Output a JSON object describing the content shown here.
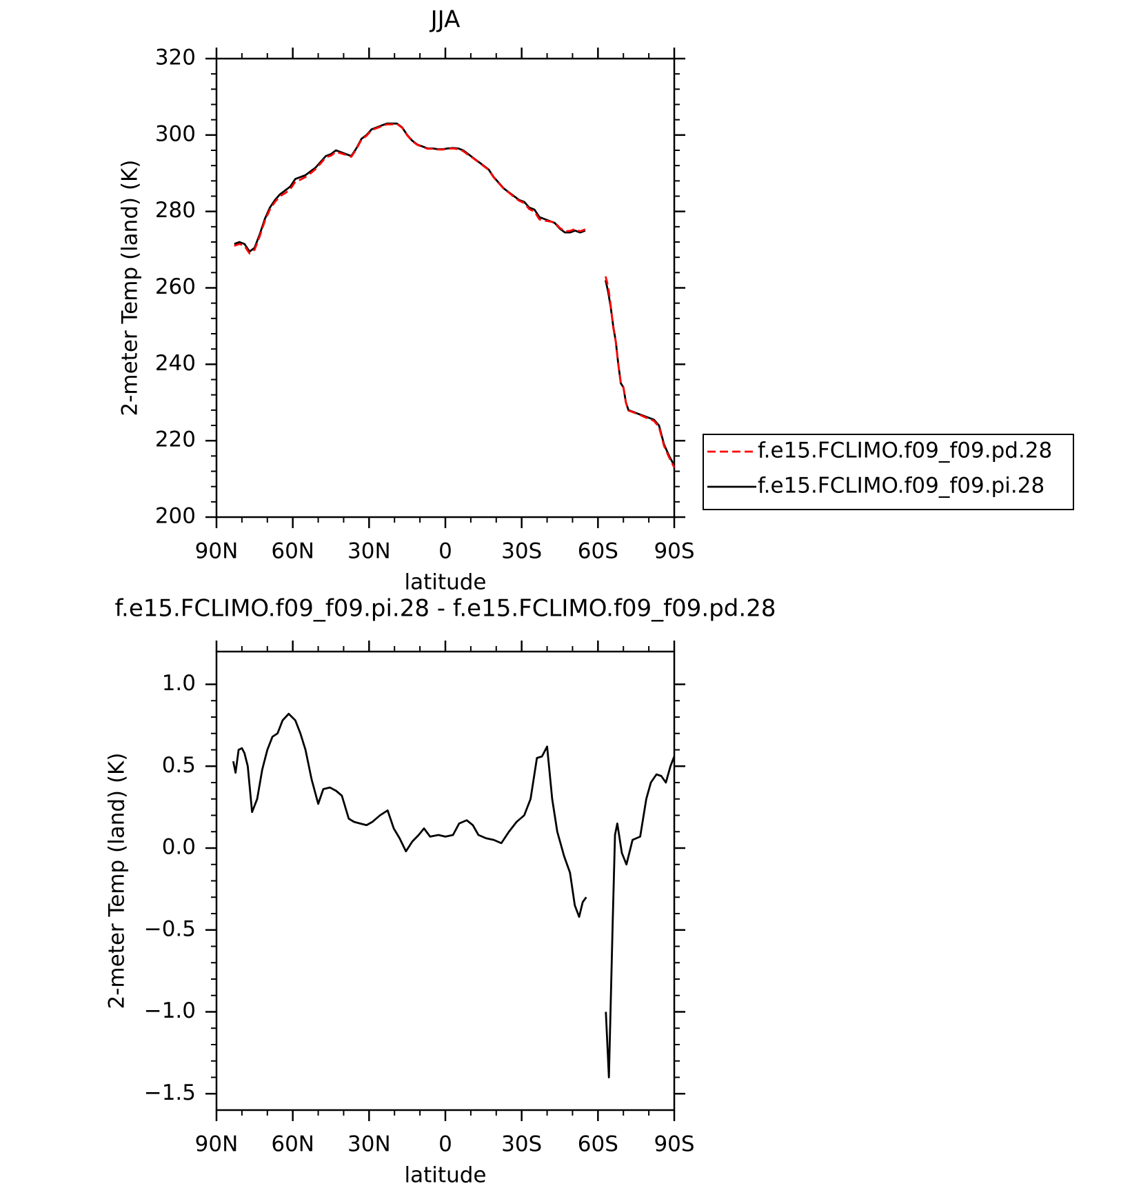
{
  "chart_data": [
    {
      "type": "line",
      "title": "JJA",
      "xlabel": "latitude",
      "ylabel": "2-meter Temp (land) (K)",
      "x": [
        83,
        81,
        79,
        77,
        75,
        73,
        71,
        69,
        67,
        65,
        63,
        61,
        59,
        57,
        55,
        53,
        51,
        49,
        47,
        45,
        43,
        41,
        39,
        37,
        35,
        33,
        31,
        29,
        27,
        25,
        23,
        21,
        19,
        17,
        15,
        13,
        11,
        9,
        7,
        5,
        3,
        1,
        -1,
        -3,
        -5,
        -7,
        -9,
        -11,
        -13,
        -15,
        -17,
        -19,
        -21,
        -23,
        -25,
        -27,
        -29,
        -31,
        -33,
        -35,
        -37,
        -39,
        -41,
        -43,
        -45,
        -47,
        -49,
        -51,
        -53,
        -55,
        -59,
        -63,
        -64,
        -65,
        -66,
        -67,
        -68,
        -69,
        -70,
        -71,
        -72,
        -74,
        -76,
        -78,
        -80,
        -82,
        -84,
        -86,
        -88,
        -90
      ],
      "series": [
        {
          "name": "f.e15.FCLIMO.f09_f09.pd.28",
          "color": "#ff0000",
          "line_style": "dashed",
          "values": [
            271,
            271.5,
            271,
            269,
            270,
            273.5,
            277.5,
            280.5,
            282.5,
            284,
            284.8,
            285.8,
            287.8,
            288.3,
            289,
            290,
            291.1,
            292.6,
            294.2,
            294.6,
            295.6,
            295.2,
            294.8,
            294.3,
            296.3,
            298.8,
            299.8,
            301.3,
            301.8,
            302.3,
            302.8,
            302.8,
            302.9,
            301.9,
            299.9,
            298.4,
            297.4,
            296.9,
            296.4,
            296.4,
            296.2,
            296.2,
            296.4,
            296.5,
            296.3,
            295.8,
            294.8,
            293.9,
            292.9,
            291.9,
            290.9,
            288.9,
            287.4,
            285.9,
            284.9,
            283.8,
            282.8,
            282.2,
            280.6,
            280,
            277.9,
            277.6,
            277.4,
            277.1,
            275.7,
            274.8,
            274.9,
            275.4,
            274.8,
            275.3,
            null,
            263,
            260.4,
            255.5,
            249.6,
            245.9,
            239.9,
            234.9,
            233.9,
            229.9,
            227.9,
            227.4,
            226.9,
            226.3,
            225.7,
            225.2,
            223.6,
            218.6,
            215.6,
            213
          ]
        },
        {
          "name": "f.e15.FCLIMO.f09_f09.pi.28",
          "color": "#000000",
          "line_style": "solid",
          "values": [
            271.5,
            272,
            271.5,
            269.5,
            270.5,
            274,
            278,
            281,
            283,
            284.5,
            285.5,
            286.5,
            288.5,
            289,
            289.5,
            290.5,
            291.5,
            293,
            294.5,
            295,
            296,
            295.5,
            295,
            294.5,
            296.5,
            299,
            300,
            301.5,
            302,
            302.5,
            303,
            303,
            303,
            302,
            300,
            298.5,
            297.5,
            297,
            296.5,
            296.5,
            296.3,
            296.3,
            296.5,
            296.6,
            296.5,
            296,
            295,
            294,
            293,
            292,
            291,
            289,
            287.5,
            286,
            285,
            284,
            283,
            282.5,
            281,
            280.5,
            278.5,
            278,
            277.5,
            277,
            275.5,
            274.5,
            274.5,
            275,
            274.5,
            275,
            null,
            262,
            259,
            255,
            250,
            246,
            240,
            235,
            234,
            230,
            228,
            227.5,
            227,
            226.5,
            226,
            225.5,
            224,
            219,
            216,
            213.5
          ]
        }
      ],
      "xlim": [
        90,
        -90
      ],
      "xticks": [
        {
          "value": 90,
          "label": "90N"
        },
        {
          "value": 60,
          "label": "60N"
        },
        {
          "value": 30,
          "label": "30N"
        },
        0,
        {
          "value": -30,
          "label": "30S"
        },
        {
          "value": -60,
          "label": "60S"
        },
        {
          "value": -90,
          "label": "90S"
        }
      ],
      "ylim": [
        200,
        320
      ],
      "yticks": [
        200,
        220,
        240,
        260,
        280,
        300,
        320
      ],
      "legend_position": "outside-right"
    },
    {
      "type": "line",
      "title": "f.e15.FCLIMO.f09_f09.pi.28 - f.e15.FCLIMO.f09_f09.pd.28",
      "xlabel": "latitude",
      "ylabel": "2-meter Temp (land) (K)",
      "x": [
        83.4,
        82.5,
        81.3,
        80,
        79,
        77.7,
        76,
        74,
        72,
        70,
        68,
        66,
        64,
        61.6,
        59,
        57,
        55,
        52.6,
        50,
        48,
        45.4,
        43,
        40.7,
        38,
        35.9,
        33.5,
        31,
        28.7,
        25.7,
        22.7,
        20.3,
        18,
        15.5,
        13,
        10.5,
        8.4,
        6,
        2.7,
        0,
        -3,
        -5.4,
        -8.4,
        -10.8,
        -13,
        -16,
        -19,
        -22,
        -25,
        -28,
        -31,
        -33.5,
        -36,
        -38,
        -40,
        -42,
        -44,
        -46.7,
        -49,
        -50.9,
        -52.6,
        -54,
        -55.4,
        -59,
        -63.1,
        -64.3,
        -65.8,
        -66.7,
        -67.6,
        -69.4,
        -71.2,
        -73.6,
        -76.6,
        -79,
        -80.8,
        -83,
        -84.9,
        -86.7,
        -88.5,
        -90
      ],
      "series": [
        {
          "color": "#000000",
          "line_style": "solid",
          "values": [
            0.53,
            0.46,
            0.6,
            0.61,
            0.58,
            0.5,
            0.22,
            0.3,
            0.48,
            0.6,
            0.68,
            0.7,
            0.78,
            0.82,
            0.78,
            0.7,
            0.6,
            0.42,
            0.27,
            0.36,
            0.37,
            0.35,
            0.32,
            0.18,
            0.16,
            0.15,
            0.14,
            0.16,
            0.2,
            0.23,
            0.12,
            0.06,
            -0.02,
            0.04,
            0.08,
            0.12,
            0.07,
            0.08,
            0.07,
            0.08,
            0.15,
            0.17,
            0.14,
            0.08,
            0.06,
            0.05,
            0.03,
            0.1,
            0.16,
            0.2,
            0.3,
            0.55,
            0.56,
            0.62,
            0.3,
            0.1,
            -0.05,
            -0.15,
            -0.35,
            -0.42,
            -0.33,
            -0.3,
            null,
            -1.0,
            -1.4,
            -0.45,
            0.08,
            0.15,
            -0.03,
            -0.1,
            0.05,
            0.07,
            0.3,
            0.4,
            0.45,
            0.44,
            0.4,
            0.5,
            0.56
          ]
        }
      ],
      "xlim": [
        90,
        -90
      ],
      "xticks": [
        {
          "value": 90,
          "label": "90N"
        },
        {
          "value": 60,
          "label": "60N"
        },
        {
          "value": 30,
          "label": "30N"
        },
        0,
        {
          "value": -30,
          "label": "30S"
        },
        {
          "value": -60,
          "label": "60S"
        },
        {
          "value": -90,
          "label": "90S"
        }
      ],
      "ylim": [
        -1.6,
        1.2
      ],
      "yticks": [
        {
          "value": -1.5,
          "label": "−1.5"
        },
        {
          "value": -1,
          "label": "−1.0"
        },
        {
          "value": -0.5,
          "label": "−0.5"
        },
        {
          "value": 0,
          "label": "0.0"
        },
        0.5,
        {
          "value": 1,
          "label": "1.0"
        }
      ]
    }
  ]
}
